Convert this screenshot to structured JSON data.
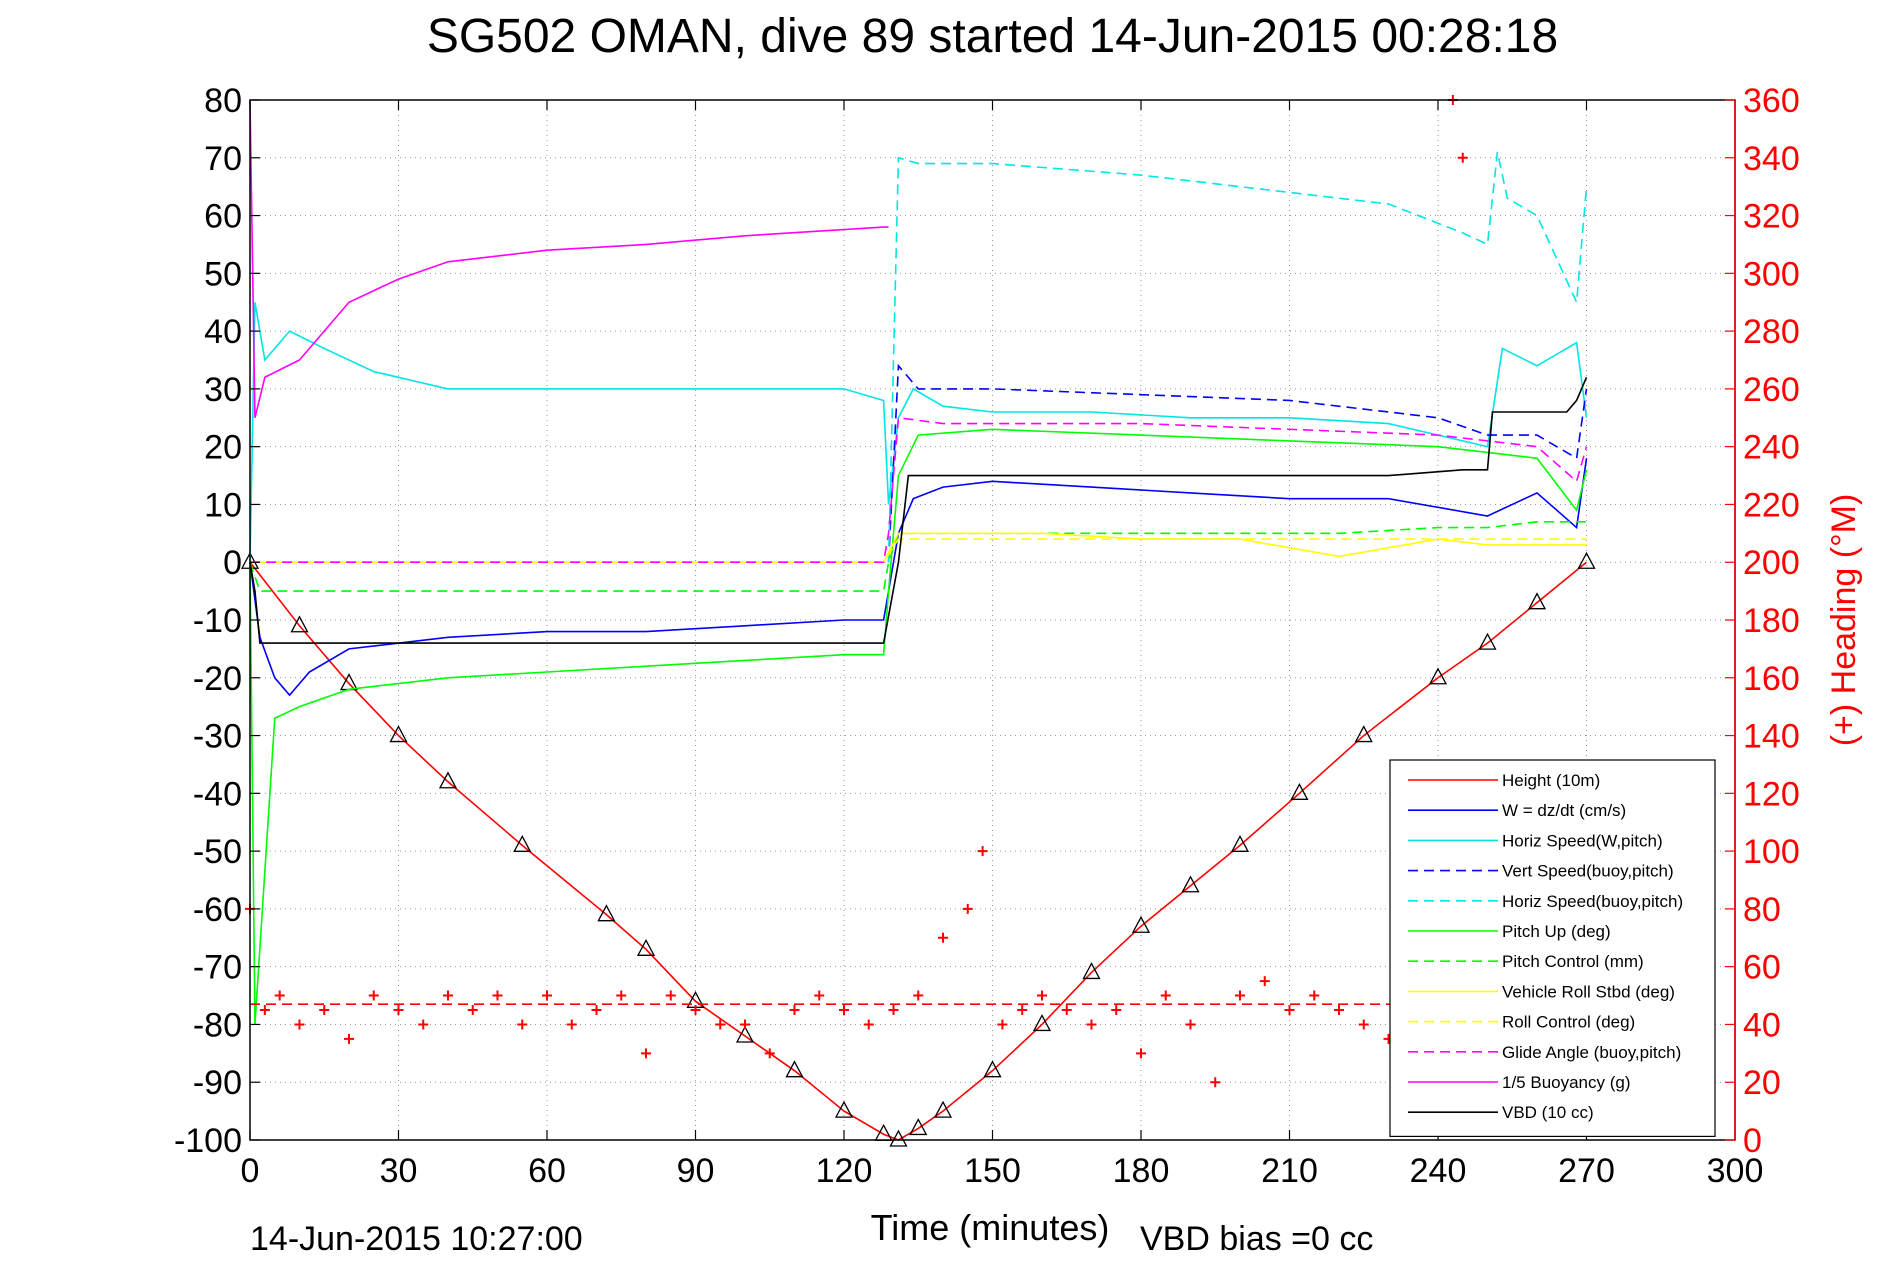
{
  "chart_data": {
    "type": "line",
    "title": "SG502 OMAN, dive 89 started 14-Jun-2015 00:28:18",
    "xlabel": "Time (minutes)",
    "ylabel_right": "(+) Heading (°M)",
    "footer_left": "14-Jun-2015 10:27:00",
    "footer_right": "VBD bias =0 cc",
    "xlim": [
      0,
      300
    ],
    "ylim_left": [
      -100,
      80
    ],
    "ylim_right": [
      0,
      360
    ],
    "grid": true,
    "legend_position": "lower-right",
    "x_ticks": [
      "0",
      "30",
      "60",
      "90",
      "120",
      "150",
      "180",
      "210",
      "240",
      "270",
      "300"
    ],
    "y_ticks_left": [
      "80",
      "70",
      "60",
      "50",
      "40",
      "30",
      "20",
      "10",
      "0",
      "-10",
      "-20",
      "-30",
      "-40",
      "-50",
      "-60",
      "-70",
      "-80",
      "-90",
      "-100"
    ],
    "y_ticks_right": [
      "360",
      "340",
      "320",
      "300",
      "280",
      "260",
      "240",
      "220",
      "200",
      "180",
      "160",
      "140",
      "120",
      "100",
      "80",
      "60",
      "40",
      "20",
      "0"
    ],
    "series": [
      {
        "name": "Height (10m)",
        "color": "#ff0000",
        "style": "solid",
        "x": [
          0,
          10,
          20,
          30,
          40,
          55,
          72,
          80,
          90,
          100,
          110,
          120,
          128,
          131,
          135,
          140,
          150,
          160,
          170,
          180,
          190,
          200,
          212,
          225,
          240,
          250,
          260,
          270
        ],
        "y": [
          0,
          -11,
          -21,
          -30,
          -38,
          -49,
          -61,
          -67,
          -76,
          -82,
          -88,
          -95,
          -99,
          -100,
          -98,
          -95,
          -88,
          -80,
          -71,
          -63,
          -56,
          -49,
          -40,
          -30,
          -20,
          -14,
          -7,
          0
        ]
      },
      {
        "name": "W = dz/dt (cm/s)",
        "color": "#0000ff",
        "style": "solid",
        "x": [
          0,
          2,
          5,
          8,
          12,
          20,
          40,
          60,
          80,
          100,
          120,
          128,
          129,
          131,
          134,
          140,
          150,
          170,
          190,
          210,
          230,
          250,
          260,
          268,
          270
        ],
        "y": [
          0,
          -13,
          -20,
          -23,
          -19,
          -15,
          -13,
          -12,
          -12,
          -11,
          -10,
          -10,
          -5,
          5,
          11,
          13,
          14,
          13,
          12,
          11,
          11,
          8,
          12,
          6,
          18
        ]
      },
      {
        "name": "Horiz Speed(W,pitch)",
        "color": "#00e5e5",
        "style": "solid",
        "x": [
          0,
          1,
          3,
          8,
          15,
          25,
          40,
          60,
          80,
          100,
          120,
          128,
          129,
          131,
          134,
          140,
          150,
          170,
          190,
          210,
          230,
          250,
          253,
          260,
          268,
          270
        ],
        "y": [
          0,
          45,
          35,
          40,
          37,
          33,
          30,
          30,
          30,
          30,
          30,
          28,
          10,
          25,
          30,
          27,
          26,
          26,
          25,
          25,
          24,
          20,
          37,
          34,
          38,
          25
        ]
      },
      {
        "name": "Vert Speed(buoy,pitch)",
        "color": "#0000ff",
        "style": "dashed",
        "x": [
          129,
          131,
          135,
          150,
          180,
          210,
          240,
          250,
          260,
          268,
          270
        ],
        "y": [
          0,
          34,
          30,
          30,
          29,
          28,
          25,
          22,
          22,
          18,
          30
        ]
      },
      {
        "name": "Horiz Speed(buoy,pitch)",
        "color": "#00e5e5",
        "style": "dashed",
        "x": [
          129,
          131,
          135,
          150,
          180,
          210,
          230,
          245,
          250,
          252,
          254,
          260,
          268,
          270
        ],
        "y": [
          0,
          70,
          69,
          69,
          67,
          64,
          62,
          57,
          55,
          71,
          63,
          60,
          45,
          65
        ]
      },
      {
        "name": "Pitch Up (deg)",
        "color": "#00ff00",
        "style": "solid",
        "x": [
          0,
          1,
          5,
          10,
          20,
          40,
          60,
          80,
          100,
          120,
          128,
          129,
          131,
          135,
          150,
          180,
          210,
          240,
          250,
          260,
          268,
          270
        ],
        "y": [
          0,
          -80,
          -27,
          -25,
          -22,
          -20,
          -19,
          -18,
          -17,
          -16,
          -16,
          -5,
          15,
          22,
          23,
          22,
          21,
          20,
          19,
          18,
          9,
          16
        ]
      },
      {
        "name": "Pitch Control (mm)",
        "color": "#00ff00",
        "style": "dashed",
        "x": [
          0,
          2,
          10,
          40,
          80,
          128,
          129,
          131,
          140,
          180,
          220,
          240,
          250,
          260,
          270
        ],
        "y": [
          0,
          -5,
          -5,
          -5,
          -5,
          -5,
          0,
          5,
          5,
          5,
          5,
          6,
          6,
          7,
          7
        ]
      },
      {
        "name": "Vehicle Roll Stbd (deg)",
        "color": "#ffff00",
        "style": "solid",
        "x": [
          0,
          10,
          20,
          40,
          60,
          80,
          100,
          120,
          128,
          131,
          140,
          160,
          180,
          200,
          220,
          240,
          250,
          260,
          270
        ],
        "y": [
          0,
          0,
          0,
          0,
          0,
          0,
          0,
          0,
          0,
          5,
          5,
          5,
          4,
          4,
          1,
          4,
          3,
          3,
          3
        ]
      },
      {
        "name": "Roll Control (deg)",
        "color": "#ffff00",
        "style": "dashed",
        "x": [
          0,
          128,
          131,
          270
        ],
        "y": [
          0,
          0,
          4,
          4
        ]
      },
      {
        "name": "Glide Angle (buoy,pitch)",
        "color": "#ff00ff",
        "style": "dashed",
        "x": [
          0,
          40,
          80,
          128,
          129,
          131,
          140,
          180,
          210,
          240,
          250,
          260,
          268,
          270
        ],
        "y": [
          0,
          0,
          0,
          0,
          5,
          25,
          24,
          24,
          23,
          22,
          21,
          20,
          14,
          20
        ]
      },
      {
        "name": "1/5 Buoyancy (g)",
        "color": "#ff00ff",
        "style": "solid",
        "x": [
          0,
          1,
          3,
          10,
          20,
          30,
          40,
          60,
          80,
          100,
          128,
          129
        ],
        "y": [
          80,
          25,
          32,
          35,
          45,
          49,
          52,
          54,
          55,
          56.5,
          58,
          58
        ]
      },
      {
        "name": "VBD (10 cc)",
        "color": "#000000",
        "style": "solid",
        "x": [
          0,
          1,
          2,
          40,
          80,
          128,
          131,
          133,
          150,
          180,
          230,
          245,
          250,
          251,
          266,
          268,
          270
        ],
        "y": [
          0,
          -5,
          -14,
          -14,
          -14,
          -14,
          0,
          15,
          15,
          15,
          15,
          16,
          16,
          26,
          26,
          28,
          32
        ]
      },
      {
        "name": "(+) Heading (°M)",
        "color": "#ff0000",
        "style": "markers",
        "axis": "right",
        "x": [
          0,
          3,
          6,
          10,
          15,
          20,
          25,
          30,
          35,
          40,
          45,
          50,
          55,
          60,
          65,
          70,
          75,
          80,
          85,
          90,
          95,
          100,
          105,
          110,
          115,
          120,
          125,
          130,
          135,
          140,
          145,
          148,
          152,
          156,
          160,
          165,
          170,
          175,
          180,
          185,
          190,
          195,
          200,
          205,
          210,
          215,
          220,
          225,
          230,
          235,
          240,
          243,
          245,
          250,
          255,
          260,
          265,
          270
        ],
        "y": [
          80,
          45,
          50,
          40,
          45,
          35,
          50,
          45,
          40,
          50,
          45,
          50,
          40,
          50,
          40,
          45,
          50,
          30,
          50,
          45,
          40,
          40,
          30,
          45,
          50,
          45,
          40,
          45,
          50,
          70,
          80,
          100,
          40,
          45,
          50,
          45,
          40,
          45,
          30,
          50,
          40,
          20,
          50,
          55,
          45,
          50,
          45,
          40,
          35,
          120,
          50,
          360,
          340,
          45,
          50,
          40,
          45,
          40
        ]
      },
      {
        "name": "",
        "color": "#ff0000",
        "style": "dashed-ref",
        "axis": "right",
        "x": [
          0,
          270
        ],
        "y": [
          47,
          47
        ]
      }
    ]
  }
}
